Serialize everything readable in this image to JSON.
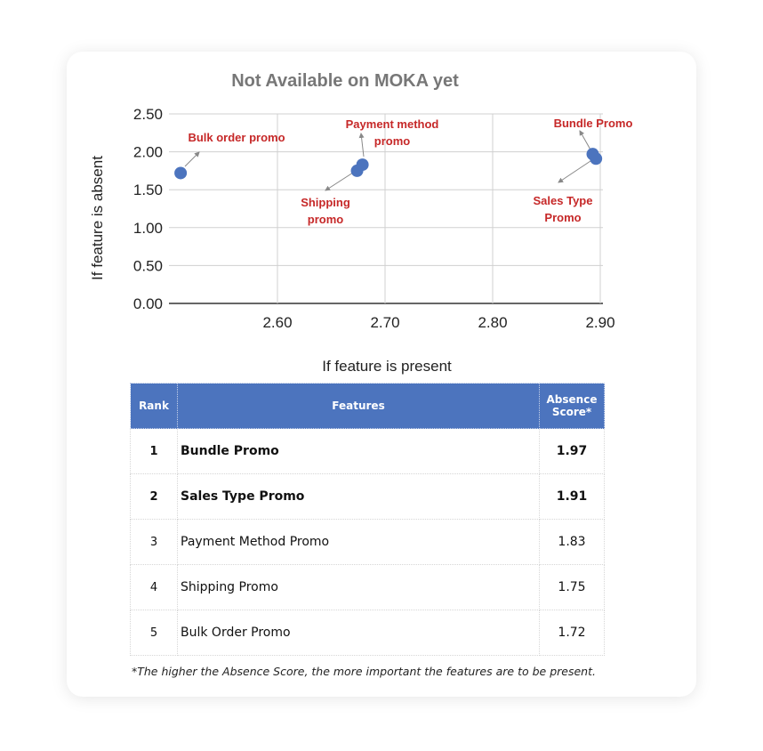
{
  "chart_data": {
    "type": "scatter",
    "title": "Not Available on MOKA yet",
    "xlabel": "If feature is present",
    "ylabel": "If feature is absent",
    "xlim": [
      2.5,
      2.9
    ],
    "ylim": [
      0,
      2.5
    ],
    "x_ticks": [
      "2.60",
      "2.70",
      "2.80",
      "2.90"
    ],
    "y_ticks": [
      "0.00",
      "0.50",
      "1.00",
      "1.50",
      "2.00",
      "2.50"
    ],
    "grid": true,
    "point_color": "#4c74be",
    "label_color": "#c62828",
    "points": [
      {
        "label": "Bulk order promo",
        "x": 2.51,
        "y": 1.72
      },
      {
        "label": "Shipping promo",
        "x": 2.674,
        "y": 1.75
      },
      {
        "label": "Payment method promo",
        "x": 2.679,
        "y": 1.83
      },
      {
        "label": "Bundle Promo",
        "x": 2.893,
        "y": 1.97
      },
      {
        "label": "Sales Type Promo",
        "x": 2.896,
        "y": 1.91
      }
    ]
  },
  "table": {
    "headers": {
      "rank": "Rank",
      "features": "Features",
      "score": "Absence Score*"
    },
    "rows": [
      {
        "rank": "1",
        "feature": "Bundle Promo",
        "score": "1.97"
      },
      {
        "rank": "2",
        "feature": "Sales Type Promo",
        "score": "1.91"
      },
      {
        "rank": "3",
        "feature": "Payment Method Promo",
        "score": "1.83"
      },
      {
        "rank": "4",
        "feature": "Shipping Promo",
        "score": "1.75"
      },
      {
        "rank": "5",
        "feature": "Bulk Order Promo",
        "score": "1.72"
      }
    ]
  },
  "footnote": "*The higher the Absence Score, the more important the features are to be present."
}
